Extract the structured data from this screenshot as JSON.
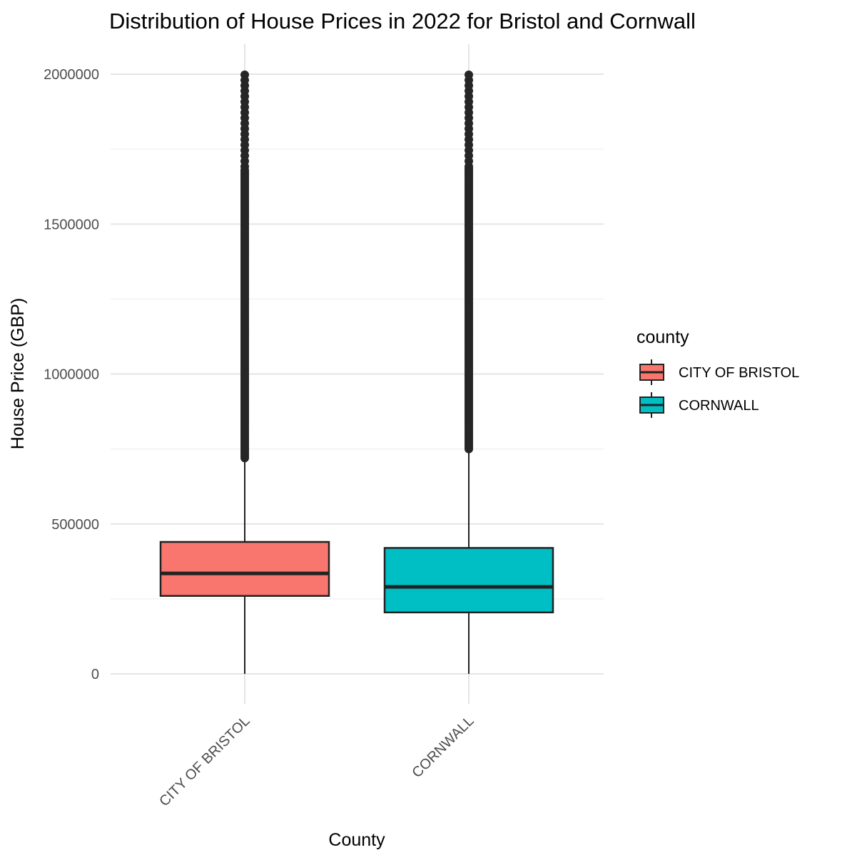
{
  "chart_data": {
    "type": "box",
    "title": "Distribution of House Prices in 2022 for Bristol and Cornwall",
    "xlabel": "County",
    "ylabel": "House Price (GBP)",
    "categories": [
      "CITY OF BRISTOL",
      "CORNWALL"
    ],
    "yticks": [
      "0",
      "500000",
      "1000000",
      "1500000",
      "2000000"
    ],
    "ytick_values": [
      0,
      500000,
      1000000,
      1500000,
      2000000
    ],
    "ylim": [
      -100000,
      2100000
    ],
    "grid": true,
    "legend": {
      "title": "county",
      "position": "right",
      "entries": [
        "CITY OF BRISTOL",
        "CORNWALL"
      ]
    },
    "series": [
      {
        "category": "CITY OF BRISTOL",
        "color": "#F8766D",
        "whisker_low": 0,
        "q1": 260000,
        "median": 335000,
        "q3": 440000,
        "whisker_high": 715000,
        "outliers_from": 720000,
        "outliers_to": 2000000
      },
      {
        "category": "CORNWALL",
        "color": "#00BFC4",
        "whisker_low": 0,
        "q1": 205000,
        "median": 290000,
        "q3": 420000,
        "whisker_high": 745000,
        "outliers_from": 750000,
        "outliers_to": 2000000
      }
    ]
  }
}
